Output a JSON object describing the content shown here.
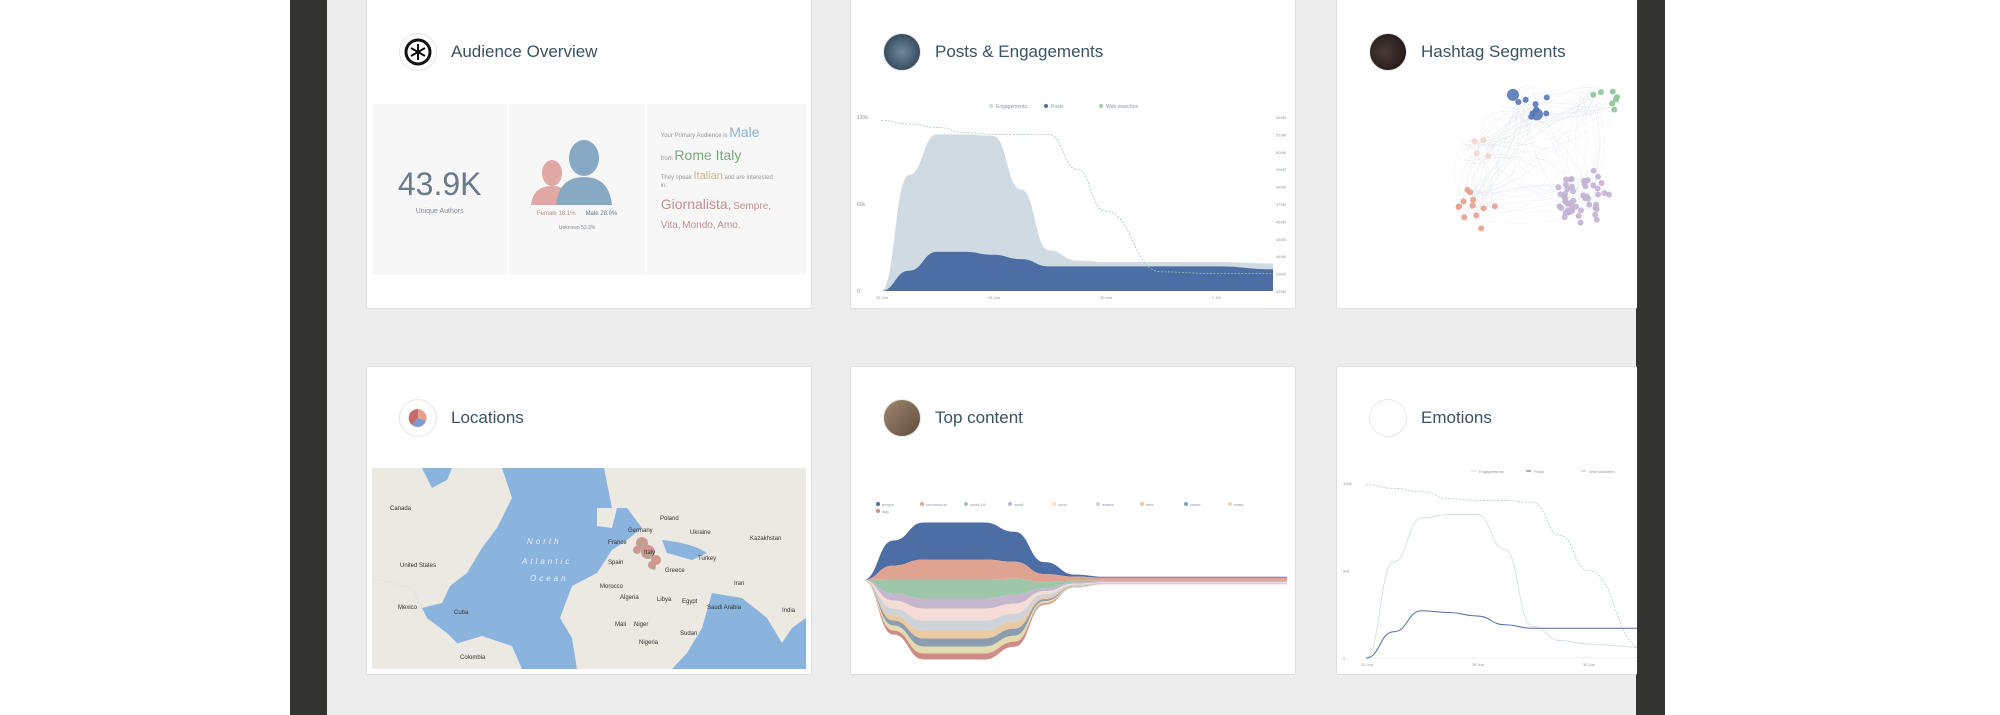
{
  "cards": {
    "audience": {
      "title": "Audience Overview",
      "icon": "asterisk-logo-icon",
      "unique_authors": "43.9K",
      "unique_authors_label": "Unique Authors",
      "female": "Female 18.1%",
      "male": "Male 28.0%",
      "unknown": "Unknown 53.9%",
      "summary": {
        "p1": "Your Primary Audience is",
        "gender": "Male",
        "p2": "from",
        "location": "Rome Italy",
        "p3": "They speak",
        "language": "Italian",
        "p4": "and are interested in:",
        "interest1": "Giornalista,",
        "interest2": "Sempre,",
        "interest3": "Vita,",
        "interest4": "Mondo,",
        "interest5": "Amo."
      }
    },
    "posts": {
      "title": "Posts & Engagements"
    },
    "hashtags": {
      "title": "Hashtag Segments"
    },
    "locations": {
      "title": "Locations",
      "map_labels": [
        "Canada",
        "United States",
        "Mexico",
        "Cuba",
        "North",
        "Atlantic",
        "Ocean",
        "Spain",
        "France",
        "Germany",
        "Poland",
        "Italy",
        "Greece",
        "Turkey",
        "Morocco",
        "Algeria",
        "Libya",
        "Egypt",
        "Mali",
        "Niger",
        "Sudan",
        "Saudi Arabia",
        "Iran",
        "India",
        "Kazakhstan",
        "Colombia",
        "Nigeria",
        "Ukraine"
      ]
    },
    "top_content": {
      "title": "Top content"
    },
    "emotions": {
      "title": "Emotions"
    }
  },
  "colors": {
    "engagements": "#cfdae3",
    "posts": "#4c6ea4",
    "web": "#9cc9a8",
    "female": "#e0a8a4",
    "male": "#87a9c3",
    "water": "#8ab4dd",
    "land": "#ece8e2"
  },
  "chart_data": [
    {
      "type": "area",
      "id": "posts-engagements",
      "legend": [
        "Engagements",
        "Posts",
        "Web searches"
      ],
      "x": [
        0,
        0.5,
        1,
        1.5,
        2,
        2.5,
        3,
        3.5,
        4,
        5,
        6,
        7
      ],
      "x_ticks": [
        {
          "v": 0,
          "label": "26 Jun"
        },
        {
          "v": 2,
          "label": "28 Jun"
        },
        {
          "v": 4,
          "label": "30 Jun"
        },
        {
          "v": 6,
          "label": "2 Jul"
        }
      ],
      "y_ticks": [
        "0",
        "60k",
        "120k"
      ],
      "ylim": [
        0,
        120000
      ],
      "y2_ticks": [
        "420M",
        "430M",
        "440M",
        "450M",
        "460M",
        "470M",
        "480M",
        "490M",
        "500M",
        "510M",
        "520M"
      ],
      "y2lim": [
        420,
        520
      ],
      "series": [
        {
          "name": "Engagements",
          "values": [
            0,
            80000,
            108000,
            108000,
            107000,
            70000,
            28000,
            21000,
            20000,
            20000,
            20000,
            19000
          ]
        },
        {
          "name": "Posts",
          "values": [
            0,
            14000,
            27000,
            27000,
            25000,
            22000,
            17000,
            17000,
            17000,
            17000,
            17000,
            15000
          ]
        },
        {
          "name": "Web searches",
          "values": [
            518,
            516,
            514,
            511,
            510,
            510,
            510,
            490,
            466,
            431,
            430,
            430
          ]
        }
      ]
    },
    {
      "type": "line",
      "id": "emotions",
      "legend": [
        "Engagements",
        "Posts",
        "Web searches"
      ],
      "x": [
        0,
        0.5,
        1,
        1.5,
        2,
        2.5,
        3,
        3.5,
        4,
        5,
        6,
        7
      ],
      "x_ticks": [
        {
          "v": 0,
          "label": "26 Jun"
        },
        {
          "v": 2,
          "label": "28 Jun"
        },
        {
          "v": 4,
          "label": "30 Jun"
        }
      ],
      "y_ticks": [
        "0",
        "50k",
        "100k"
      ],
      "ylim": [
        0,
        100000
      ],
      "series": [
        {
          "name": "Engagements",
          "values": [
            0,
            55000,
            80000,
            82000,
            82000,
            62000,
            18000,
            10000,
            8000,
            6000,
            6000,
            6000
          ]
        },
        {
          "name": "Posts",
          "values": [
            0,
            15000,
            27000,
            26000,
            24000,
            19000,
            17000,
            17000,
            17000,
            17000,
            17000,
            17000
          ]
        },
        {
          "name": "Web searches",
          "values": [
            99000,
            97000,
            95000,
            91000,
            90000,
            90000,
            89000,
            70000,
            50000,
            5000,
            4000,
            4000
          ]
        }
      ]
    },
    {
      "type": "area",
      "id": "top-content-stream",
      "x": [
        0,
        0.5,
        1,
        2,
        2.5,
        3,
        3.5,
        4,
        5,
        6,
        7
      ],
      "series": [
        {
          "name": "people",
          "color": "#4c6ea4",
          "values": [
            0,
            25,
            37,
            37,
            30,
            12,
            2,
            1,
            1,
            1,
            1
          ]
        },
        {
          "name": "coronavirus",
          "color": "#e0a392",
          "values": [
            0,
            14,
            20,
            20,
            17,
            8,
            4,
            3,
            3,
            3,
            3
          ]
        },
        {
          "name": "covid-19",
          "color": "#9ec6a8",
          "values": [
            0,
            14,
            19,
            19,
            16,
            6,
            2,
            1,
            1,
            1,
            1
          ]
        },
        {
          "name": "covid",
          "color": "#c4b6cc",
          "values": [
            0,
            7,
            10,
            10,
            9,
            3,
            1,
            0.5,
            0.5,
            0.5,
            0.5
          ]
        },
        {
          "name": "virus",
          "color": "#f5dcd6",
          "values": [
            0,
            8,
            12,
            12,
            10,
            3,
            1,
            0.5,
            0.5,
            0.5,
            0.5
          ]
        },
        {
          "name": "masks",
          "color": "#cdd3d9",
          "values": [
            0,
            7,
            10,
            10,
            8,
            3,
            1,
            0.5,
            0.5,
            0.5,
            0.5
          ]
        },
        {
          "name": "time",
          "color": "#ebcaa3",
          "values": [
            0,
            5,
            8,
            8,
            7,
            2,
            0.5,
            0.3,
            0.3,
            0.3,
            0.3
          ]
        },
        {
          "name": "cases",
          "color": "#8d9db0",
          "values": [
            0,
            5,
            8,
            8,
            7,
            2,
            0.5,
            0.3,
            0.3,
            0.3,
            0.3
          ]
        },
        {
          "name": "mask",
          "color": "#e4dbb0",
          "values": [
            0,
            5,
            7,
            7,
            6,
            2,
            0.5,
            0.3,
            0.3,
            0.3,
            0.3
          ]
        },
        {
          "name": "way",
          "color": "#cf8b86",
          "values": [
            0,
            4,
            6,
            6,
            5,
            1.5,
            0.3,
            0.2,
            0.2,
            0.2,
            0.2
          ]
        }
      ]
    }
  ],
  "hashtag_graph": {
    "clusters": [
      {
        "color": "#5778b8",
        "count": 10
      },
      {
        "color": "#8fc49a",
        "count": 7
      },
      {
        "color": "#e5a08c",
        "count": 12
      },
      {
        "color": "#f2d5cc",
        "count": 4
      },
      {
        "color": "#c2b2d4",
        "count": 55
      }
    ]
  }
}
